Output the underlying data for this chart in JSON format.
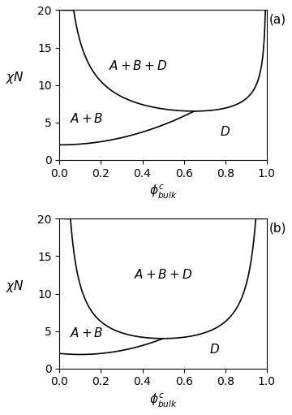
{
  "title_a": "(a)",
  "title_b": "(b)",
  "xlabel": "$\\phi^c_{bulk}$",
  "ylabel": "$\\chi N$",
  "ylim": [
    0,
    20
  ],
  "xlim": [
    0.0,
    1.0
  ],
  "yticks": [
    0,
    5,
    10,
    15,
    20
  ],
  "xticks": [
    0.0,
    0.2,
    0.4,
    0.6,
    0.8,
    1.0
  ],
  "label_ABD": "$A+B+D$",
  "label_AB": "$A+B$",
  "label_D": "$D$",
  "line_color": "#000000",
  "background": "#ffffff",
  "fontsize_label": 11,
  "fontsize_tick": 10,
  "fontsize_annot": 11,
  "figsize": [
    3.6,
    5.11
  ],
  "dpi": 100,
  "panel_a": {
    "label": "(a)",
    "upper_alpha": 0.35,
    "upper_A": 1.38,
    "lower_chi0": 2.0,
    "lower_B": 10.65,
    "lower_n": 2.0,
    "lower_phi_max": 0.65,
    "annot_ABD": [
      0.38,
      12.0
    ],
    "annot_AB": [
      0.13,
      5.0
    ],
    "annot_D": [
      0.8,
      3.2
    ]
  },
  "panel_b": {
    "label": "(b)",
    "upper_scale": 1.0,
    "lower_chi0": 2.0,
    "lower_B": 8.0,
    "lower_n": 2.0,
    "lower_phi_max": 0.5,
    "annot_ABD": [
      0.5,
      12.0
    ],
    "annot_AB": [
      0.13,
      4.2
    ],
    "annot_D": [
      0.75,
      2.0
    ]
  }
}
